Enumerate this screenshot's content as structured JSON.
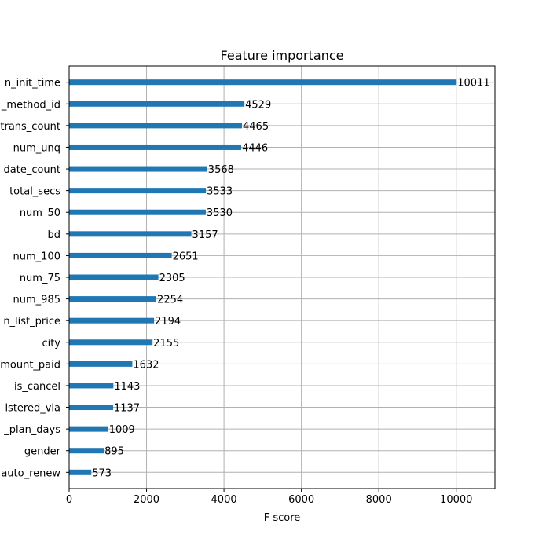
{
  "chart_data": {
    "type": "bar",
    "orientation": "horizontal",
    "title": "Feature importance",
    "xlabel": "F score",
    "ylabel": "",
    "xlim": [
      0,
      11000
    ],
    "xticks": [
      0,
      2000,
      4000,
      6000,
      8000,
      10000
    ],
    "grid": true,
    "bar_color": "#1f77b4",
    "categories": [
      "n_init_time",
      "_method_id",
      "trans_count",
      "num_unq",
      "date_count",
      "total_secs",
      "num_50",
      "bd",
      "num_100",
      "num_75",
      "num_985",
      "n_list_price",
      "city",
      "mount_paid",
      "is_cancel",
      "istered_via",
      "_plan_days",
      "gender",
      "auto_renew"
    ],
    "values": [
      10011,
      4529,
      4465,
      4446,
      3568,
      3533,
      3530,
      3157,
      2651,
      2305,
      2254,
      2194,
      2155,
      1632,
      1143,
      1137,
      1009,
      895,
      573
    ]
  }
}
